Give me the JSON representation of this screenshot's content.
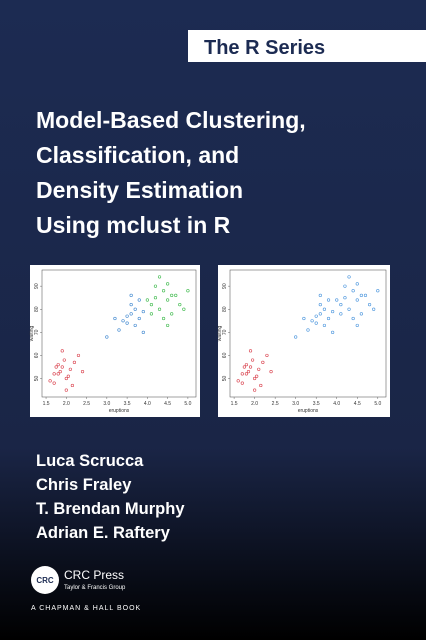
{
  "series_label": "The R Series",
  "title": [
    "Model-Based Clustering,",
    "Classification, and",
    "Density Estimation",
    "Using mclust in R"
  ],
  "authors": [
    "Luca Scrucca",
    "Chris Fraley",
    "T. Brendan Murphy",
    "Adrian E. Raftery"
  ],
  "publisher": {
    "logo": "CRC",
    "name": "CRC Press",
    "group": "Taylor & Francis Group",
    "imprint": "A CHAPMAN & HALL BOOK"
  },
  "chart_data": [
    {
      "type": "scatter",
      "xlabel": "eruptions",
      "ylabel": "waiting",
      "xlim": [
        1.4,
        5.2
      ],
      "ylim": [
        42,
        97
      ],
      "xticks": [
        1.5,
        {
          "value": 2,
          "label": "2.0"
        },
        2.5,
        {
          "value": 3,
          "label": "3.0"
        },
        3.5,
        {
          "value": 4,
          "label": "4.0"
        },
        4.5,
        {
          "value": 5,
          "label": "5.0"
        }
      ],
      "yticks": [
        50,
        60,
        70,
        80,
        90
      ],
      "series": [
        {
          "color": "#d9404c",
          "x": [
            1.8,
            1.9,
            2.0,
            2.1,
            1.7,
            2.2,
            1.85,
            1.95,
            2.05,
            1.75,
            2.3,
            1.6,
            2.15,
            1.9,
            2.0,
            1.8,
            2.4,
            1.7
          ],
          "values": [
            52,
            55,
            50,
            54,
            48,
            57,
            53,
            58,
            51,
            55,
            60,
            49,
            47,
            62,
            45,
            56,
            53,
            52
          ]
        },
        {
          "color": "#3d86cf",
          "x": [
            3.5,
            3.6,
            3.7,
            3.8,
            3.9,
            3.6,
            3.7,
            3.5,
            3.8,
            3.4,
            3.9,
            3.3,
            3.6,
            3.0,
            3.2
          ],
          "values": [
            74,
            78,
            80,
            76,
            79,
            82,
            73,
            77,
            84,
            75,
            70,
            71,
            86,
            68,
            76
          ]
        },
        {
          "color": "#3cb94a",
          "x": [
            4.1,
            4.2,
            4.3,
            4.4,
            4.5,
            4.6,
            4.7,
            4.2,
            4.4,
            4.5,
            4.0,
            4.8,
            4.3,
            4.6,
            4.9,
            4.1,
            4.5,
            5.0
          ],
          "values": [
            82,
            85,
            80,
            88,
            84,
            78,
            86,
            90,
            76,
            91,
            84,
            82,
            94,
            86,
            80,
            78,
            73,
            88
          ]
        }
      ]
    },
    {
      "type": "scatter",
      "xlabel": "eruptions",
      "ylabel": "waiting",
      "xlim": [
        1.4,
        5.2
      ],
      "ylim": [
        42,
        97
      ],
      "xticks": [
        1.5,
        {
          "value": 2,
          "label": "2.0"
        },
        2.5,
        {
          "value": 3,
          "label": "3.0"
        },
        3.5,
        {
          "value": 4,
          "label": "4.0"
        },
        4.5,
        {
          "value": 5,
          "label": "5.0"
        }
      ],
      "yticks": [
        50,
        60,
        70,
        80,
        90
      ],
      "series": [
        {
          "color": "#d9404c",
          "x": [
            1.8,
            1.9,
            2.0,
            2.1,
            1.7,
            2.2,
            1.85,
            1.95,
            2.05,
            1.75,
            2.3,
            1.6,
            2.15,
            1.9,
            2.0,
            1.8,
            2.4,
            1.7
          ],
          "values": [
            52,
            55,
            50,
            54,
            48,
            57,
            53,
            58,
            51,
            55,
            60,
            49,
            47,
            62,
            45,
            56,
            53,
            52
          ]
        },
        {
          "color": "#4a95dd",
          "x": [
            3.5,
            3.6,
            3.7,
            3.8,
            3.9,
            3.6,
            3.7,
            3.5,
            3.8,
            3.4,
            3.9,
            3.3,
            3.6,
            3.0,
            3.2,
            4.1,
            4.2,
            4.3,
            4.4,
            4.5,
            4.6,
            4.7,
            4.2,
            4.4,
            4.5,
            4.0,
            4.8,
            4.3,
            4.6,
            4.9,
            4.1,
            4.5,
            5.0
          ],
          "values": [
            74,
            78,
            80,
            76,
            79,
            82,
            73,
            77,
            84,
            75,
            70,
            71,
            86,
            68,
            76,
            82,
            85,
            80,
            88,
            84,
            78,
            86,
            90,
            76,
            91,
            84,
            82,
            94,
            86,
            80,
            78,
            73,
            88
          ]
        }
      ]
    }
  ]
}
